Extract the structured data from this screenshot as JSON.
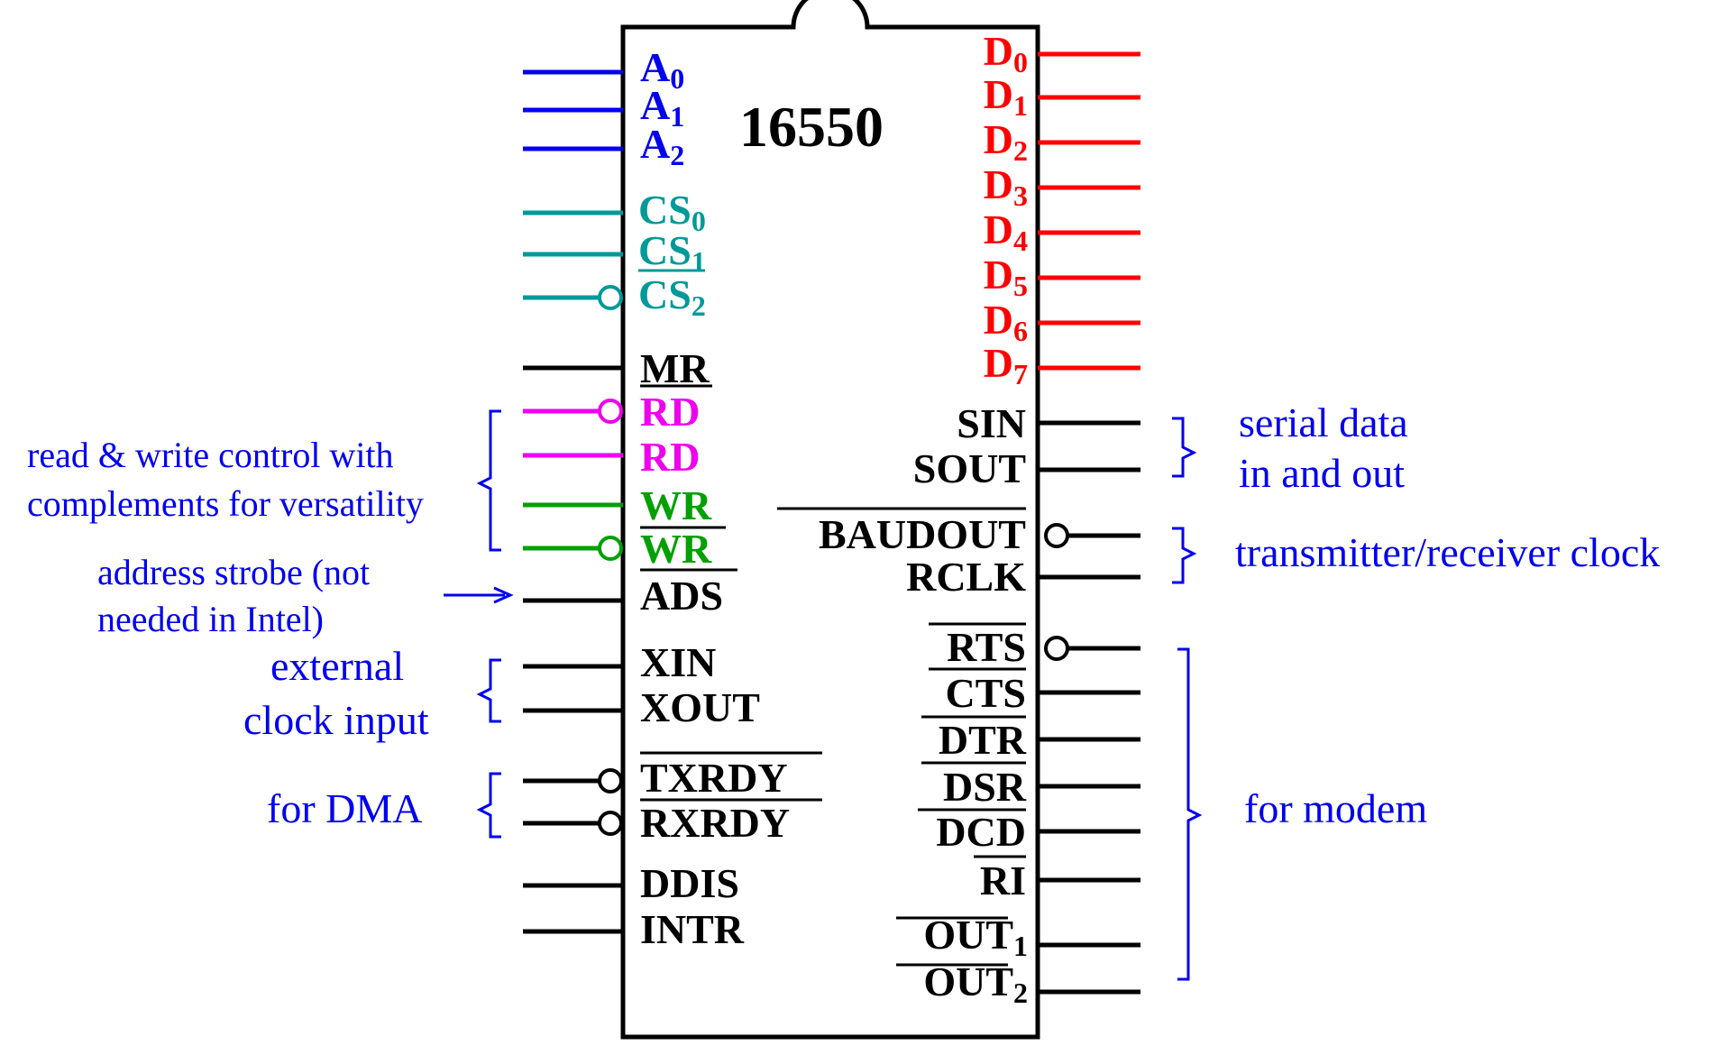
{
  "chip": {
    "name": "16550"
  },
  "pins": {
    "a0": {
      "main": "A",
      "sub": "0"
    },
    "a1": {
      "main": "A",
      "sub": "1"
    },
    "a2": {
      "main": "A",
      "sub": "2"
    },
    "cs0": {
      "main": "CS",
      "sub": "0"
    },
    "cs1": {
      "main": "CS",
      "sub": "1"
    },
    "cs2": {
      "main": "CS",
      "sub": "2"
    },
    "mr": "MR",
    "rd1": "RD",
    "rd2": "RD",
    "wr1": "WR",
    "wr2": "WR",
    "ads": "ADS",
    "xin": "XIN",
    "xout": "XOUT",
    "txrdy": "TXRDY",
    "rxrdy": "RXRDY",
    "ddis": "DDIS",
    "intr": "INTR",
    "d0": {
      "main": "D",
      "sub": "0"
    },
    "d1": {
      "main": "D",
      "sub": "1"
    },
    "d2": {
      "main": "D",
      "sub": "2"
    },
    "d3": {
      "main": "D",
      "sub": "3"
    },
    "d4": {
      "main": "D",
      "sub": "4"
    },
    "d5": {
      "main": "D",
      "sub": "5"
    },
    "d6": {
      "main": "D",
      "sub": "6"
    },
    "d7": {
      "main": "D",
      "sub": "7"
    },
    "sin": "SIN",
    "sout": "SOUT",
    "baudout": "BAUDOUT",
    "rclk": "RCLK",
    "rts": "RTS",
    "cts": "CTS",
    "dtr": "DTR",
    "dsr": "DSR",
    "dcd": "DCD",
    "ri": "RI",
    "out1": {
      "main": "OUT",
      "sub": "1"
    },
    "out2": {
      "main": "OUT",
      "sub": "2"
    }
  },
  "annotations": {
    "rw_line1": "read & write control with",
    "rw_line2": "complements for versatility",
    "ads_line1": "address strobe (not",
    "ads_line2": "needed in Intel)",
    "clk_line1": "external",
    "clk_line2": "clock input",
    "dma": "for DMA",
    "serial_line1": "serial data",
    "serial_line2": "in and out",
    "txrx_clock": "transmitter/receiver clock",
    "modem": "for modem"
  },
  "colors": {
    "address": "#0000ee",
    "chip_select": "#009999",
    "read": "#ee00ee",
    "write": "#00a000",
    "data": "#ff0000",
    "default": "#000000",
    "annotation": "#0000ee"
  }
}
